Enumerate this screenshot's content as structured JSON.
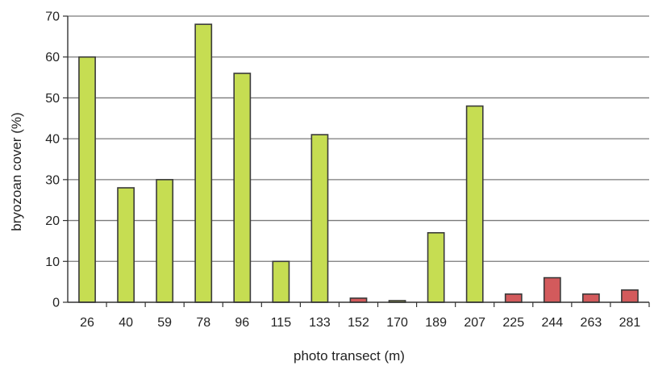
{
  "chart_data": {
    "type": "bar",
    "title": "",
    "xlabel": "photo transect (m)",
    "ylabel": "bryozoan cover (%)",
    "ylim": [
      0,
      70
    ],
    "yticks": [
      0,
      10,
      20,
      30,
      40,
      50,
      60,
      70
    ],
    "grid": true,
    "categories": [
      "26",
      "40",
      "59",
      "78",
      "96",
      "115",
      "133",
      "152",
      "170",
      "189",
      "207",
      "225",
      "244",
      "263",
      "281"
    ],
    "values": [
      60,
      28,
      30,
      68,
      56,
      10,
      41,
      1,
      0.4,
      17,
      48,
      2,
      6,
      2,
      3
    ],
    "bar_colors": [
      "#c6dd52",
      "#c6dd52",
      "#c6dd52",
      "#c6dd52",
      "#c6dd52",
      "#c6dd52",
      "#c6dd52",
      "#d35a5c",
      "#c6dd52",
      "#c6dd52",
      "#c6dd52",
      "#d35a5c",
      "#d35a5c",
      "#d35a5c",
      "#d35a5c"
    ],
    "bar_outline_color": "#3a3a3a",
    "gridline_color": "#7a7a7a"
  }
}
